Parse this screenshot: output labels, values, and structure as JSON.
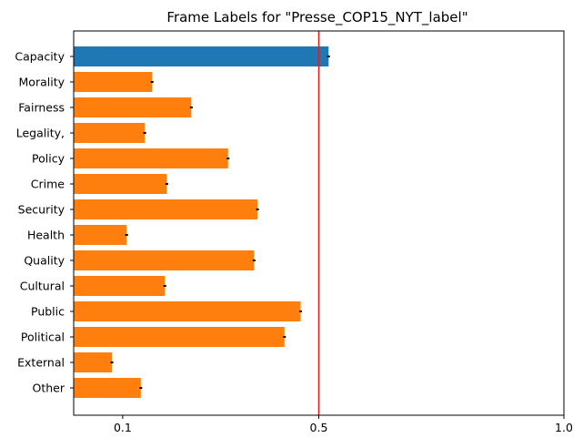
{
  "chart_data": {
    "type": "bar",
    "orientation": "horizontal",
    "title": "Frame Labels for \"Presse_COP15_NYT_label\"",
    "xlabel": "",
    "ylabel": "",
    "categories": [
      "Capacity",
      "Morality",
      "Fairness",
      "Legality,",
      "Policy",
      "Crime",
      "Security",
      "Health",
      "Quality",
      "Cultural",
      "Public",
      "Political",
      "External",
      "Other"
    ],
    "values": [
      0.52,
      0.16,
      0.24,
      0.145,
      0.315,
      0.19,
      0.375,
      0.108,
      0.368,
      0.186,
      0.463,
      0.43,
      0.078,
      0.137
    ],
    "highlight_index": 0,
    "colors": {
      "default": "#ff7f0e",
      "highlight": "#1f77b4",
      "reference_line": "#e41a1c",
      "error_bar": "#000000"
    },
    "reference_line_x": 0.5,
    "xlim": [
      0,
      1.0
    ],
    "xticks": [
      0.1,
      0.5,
      1.0
    ],
    "xtick_labels": [
      "0.1",
      "0.5",
      "1.0"
    ],
    "grid": false,
    "legend": "none"
  }
}
